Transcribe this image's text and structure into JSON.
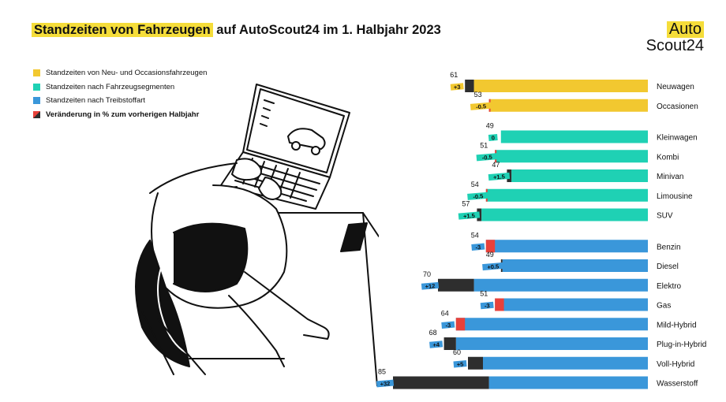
{
  "title": {
    "highlight": "Standzeiten von Fahrzeugen",
    "rest": " auf AutoScout24 im 1. Halbjahr 2023"
  },
  "logo": {
    "line1": "Auto",
    "line2": "Scout24"
  },
  "legend": [
    {
      "label": "Standzeiten von Neu- und Occasionsfahrzeugen",
      "color": "#f2c830"
    },
    {
      "label": "Standzeiten nach Fahrzeugsegmenten",
      "color": "#1fd1b4"
    },
    {
      "label": "Standzeiten nach Treibstoffart",
      "color": "#3a97da"
    },
    {
      "label": "Veränderung in % zum vorherigen Halbjahr",
      "color": "change"
    }
  ],
  "colors": {
    "yellow": "#f2c830",
    "teal": "#1fd1b4",
    "blue": "#3a97da",
    "increase": "#2e2e2e",
    "decrease": "#e8413a"
  },
  "chart_data": {
    "type": "bar",
    "orientation": "horizontal",
    "value_unit": "Tage",
    "groups": [
      {
        "color": "yellow",
        "items": [
          {
            "label": "Neuwagen",
            "value": 61,
            "change": "+3"
          },
          {
            "label": "Occasionen",
            "value": 53,
            "change": "-0.5"
          }
        ]
      },
      {
        "color": "teal",
        "items": [
          {
            "label": "Kleinwagen",
            "value": 49,
            "change": "0"
          },
          {
            "label": "Kombi",
            "value": 51,
            "change": "-0.5"
          },
          {
            "label": "Minivan",
            "value": 47,
            "change": "+1.5"
          },
          {
            "label": "Limousine",
            "value": 54,
            "change": "-0.5"
          },
          {
            "label": "SUV",
            "value": 57,
            "change": "+1.5"
          }
        ]
      },
      {
        "color": "blue",
        "items": [
          {
            "label": "Benzin",
            "value": 54,
            "change": "-3"
          },
          {
            "label": "Diesel",
            "value": 49,
            "change": "+0.5"
          },
          {
            "label": "Elektro",
            "value": 70,
            "change": "+12"
          },
          {
            "label": "Gas",
            "value": 51,
            "change": "-3"
          },
          {
            "label": "Mild-Hybrid",
            "value": 64,
            "change": "-3"
          },
          {
            "label": "Plug-in-Hybrid",
            "value": 68,
            "change": "+4"
          },
          {
            "label": "Voll-Hybrid",
            "value": 60,
            "change": "+5"
          },
          {
            "label": "Wasserstoff",
            "value": 85,
            "change": "+32"
          }
        ]
      }
    ]
  }
}
